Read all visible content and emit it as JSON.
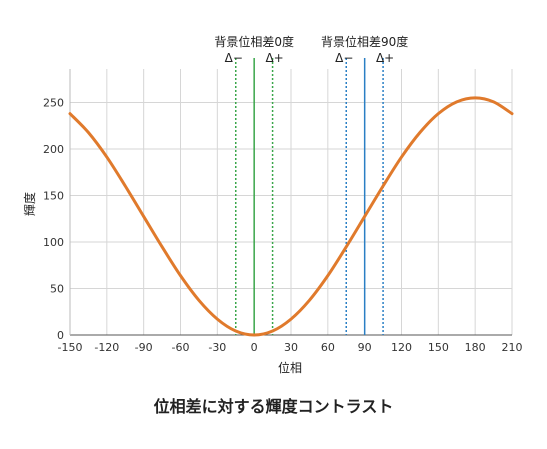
{
  "caption": "位相差に対する輝度コントラスト",
  "chart_data": {
    "type": "line",
    "title": "",
    "xlabel": "位相",
    "ylabel": "輝度",
    "xlim": [
      -150,
      210
    ],
    "ylim": [
      0,
      250
    ],
    "x_ticks": [
      -150,
      -120,
      -90,
      -60,
      -30,
      0,
      30,
      60,
      90,
      120,
      150,
      180,
      210
    ],
    "y_ticks": [
      0,
      50,
      100,
      150,
      200,
      250
    ],
    "grid": true,
    "series": [
      {
        "color": "#e07a2c",
        "x": [
          -150,
          -135,
          -120,
          -105,
          -90,
          -75,
          -60,
          -45,
          -30,
          -15,
          0,
          15,
          30,
          45,
          60,
          75,
          90,
          105,
          120,
          135,
          150,
          165,
          180,
          195,
          210
        ],
        "values": [
          238.0,
          217.7,
          191.3,
          160.2,
          127.5,
          94.8,
          63.8,
          37.3,
          17.1,
          4.3,
          0.0,
          4.3,
          17.1,
          37.3,
          63.8,
          94.8,
          127.5,
          160.2,
          191.3,
          217.7,
          238.0,
          250.7,
          255.0,
          250.7,
          238.0
        ]
      }
    ],
    "annotations": [
      {
        "label": "背景位相差0度",
        "center": 0,
        "minus_label": "Δ−",
        "plus_label": "Δ+",
        "minus": -15,
        "plus": 15,
        "color": "#3aa64a"
      },
      {
        "label": "背景位相差90度",
        "center": 90,
        "minus_label": "Δ−",
        "plus_label": "Δ+",
        "minus": 75,
        "plus": 105,
        "color": "#2a7fc4"
      }
    ]
  }
}
